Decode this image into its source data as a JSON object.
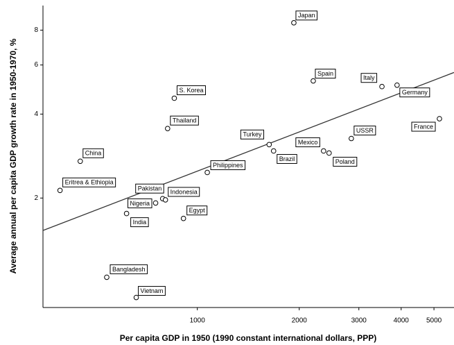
{
  "chart_data": {
    "type": "scatter",
    "x_label": "Per capita GDP in 1950 (1990 constant international dollars, PPP)",
    "y_label": "Average annual per capita GDP growth rate in 1950-1970, %",
    "log_x": true,
    "log_y": true,
    "xlim": [
      350,
      5730
    ],
    "ylim": [
      0.81,
      9.8
    ],
    "xticks": [
      1000,
      2000,
      3000,
      4000,
      5000
    ],
    "yticks": [
      2,
      4,
      6,
      8
    ],
    "color": "#000000",
    "labels": [
      "Japan",
      "Spain",
      "Italy",
      "Germany",
      "France",
      "USSR",
      "Mexico",
      "Poland",
      "Turkey",
      "Brazil",
      "S. Korea",
      "Thailand",
      "China",
      "Eritrea & Ethiopia",
      "Philippines",
      "Pakistan",
      "Indonesia",
      "Nigeria",
      "India",
      "Egypt",
      "Bangladesh",
      "Vietnam"
    ],
    "x": [
      1928,
      2200,
      3510,
      3890,
      5190,
      2850,
      2360,
      2450,
      1630,
      1680,
      855,
      817,
      451,
      393,
      1070,
      790,
      805,
      753,
      618,
      910,
      540,
      660
    ],
    "values": [
      8.5,
      5.26,
      5.02,
      5.08,
      3.85,
      3.27,
      2.95,
      2.9,
      3.11,
      2.95,
      4.56,
      3.55,
      2.71,
      2.13,
      2.47,
      1.99,
      1.97,
      1.92,
      1.76,
      1.69,
      1.04,
      0.88
    ],
    "fit_line": {
      "x": [
        350,
        5730
      ],
      "y": [
        1.53,
        5.64
      ]
    }
  }
}
